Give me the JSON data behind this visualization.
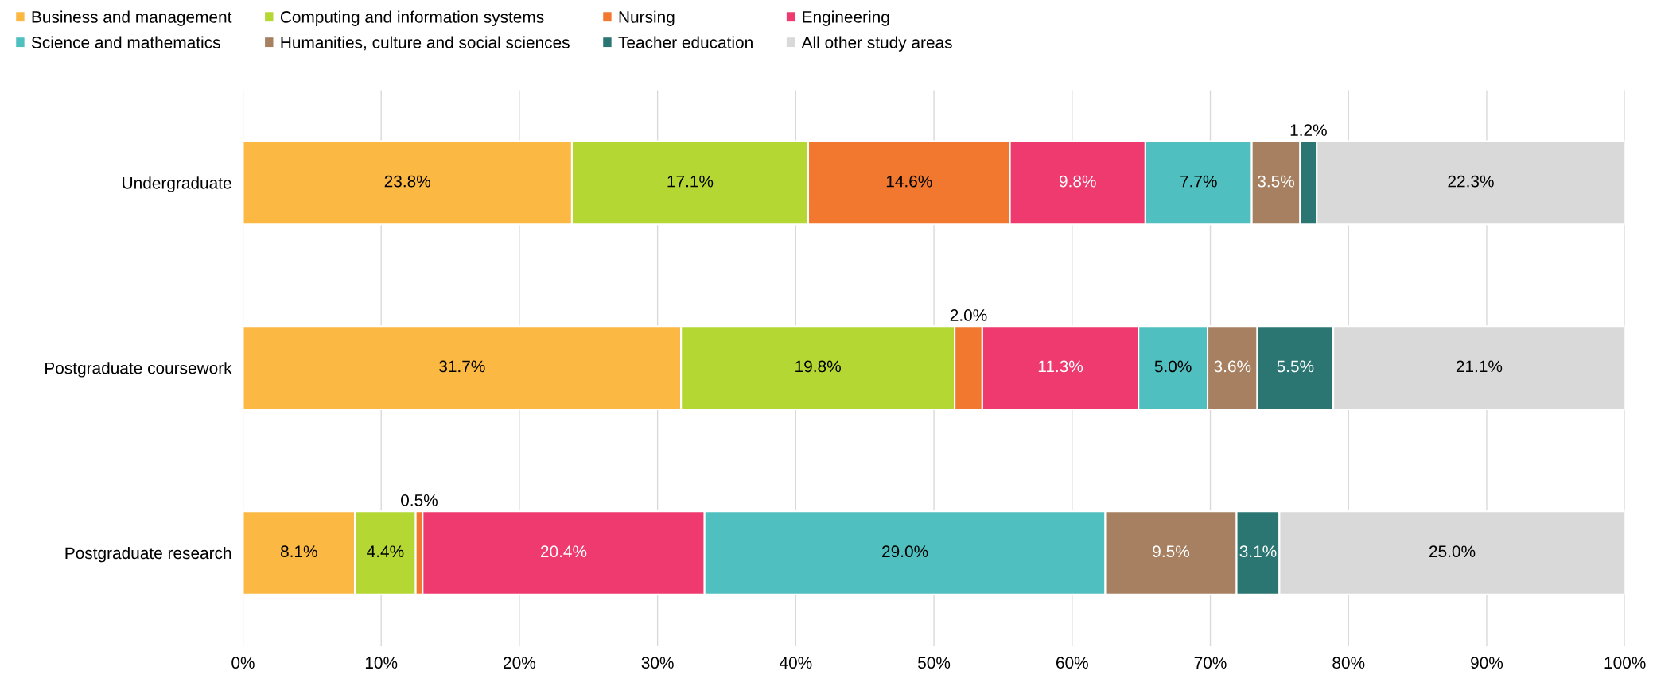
{
  "chart_data": {
    "type": "bar",
    "orientation": "horizontal",
    "stacked": true,
    "categories": [
      "Undergraduate",
      "Postgraduate coursework",
      "Postgraduate research"
    ],
    "series": [
      {
        "name": "Business and management",
        "color": "#fbb843",
        "values": [
          23.8,
          31.7,
          8.1
        ],
        "value_labels": [
          "23.8%",
          "31.7%",
          "8.1%"
        ]
      },
      {
        "name": "Computing and information systems",
        "color": "#b5d733",
        "values": [
          17.1,
          19.8,
          4.4
        ],
        "value_labels": [
          "17.1%",
          "19.8%",
          "4.4%"
        ]
      },
      {
        "name": "Nursing",
        "color": "#f2782f",
        "values": [
          14.6,
          2.0,
          0.5
        ],
        "value_labels": [
          "14.6%",
          "2.0%",
          "0.5%"
        ]
      },
      {
        "name": "Engineering",
        "color": "#ef3a6f",
        "values": [
          9.8,
          11.3,
          20.4
        ],
        "value_labels": [
          "9.8%",
          "11.3%",
          "20.4%"
        ]
      },
      {
        "name": "Science and mathematics",
        "color": "#50bfbf",
        "values": [
          7.7,
          5.0,
          29.0
        ],
        "value_labels": [
          "7.7%",
          "5.0%",
          "29.0%"
        ]
      },
      {
        "name": "Humanities, culture and social sciences",
        "color": "#a68060",
        "values": [
          3.5,
          3.6,
          9.5
        ],
        "value_labels": [
          "3.5%",
          "3.6%",
          "9.5%"
        ]
      },
      {
        "name": "Teacher education",
        "color": "#2b7672",
        "values": [
          1.2,
          5.5,
          3.1
        ],
        "value_labels": [
          "1.2%",
          "5.5%",
          "3.1%"
        ]
      },
      {
        "name": "All other study areas",
        "color": "#d9d9d9",
        "values": [
          22.3,
          21.1,
          25.0
        ],
        "value_labels": [
          "22.3%",
          "21.1%",
          "25.0%"
        ]
      }
    ],
    "xlim": [
      0,
      100
    ],
    "xticks": [
      {
        "value": 0,
        "label": "0%"
      },
      {
        "value": 10,
        "label": "10%"
      },
      {
        "value": 20,
        "label": "20%"
      },
      {
        "value": 30,
        "label": "30%"
      },
      {
        "value": 40,
        "label": "40%"
      },
      {
        "value": 50,
        "label": "50%"
      },
      {
        "value": 60,
        "label": "60%"
      },
      {
        "value": 70,
        "label": "70%"
      },
      {
        "value": 80,
        "label": "80%"
      },
      {
        "value": 90,
        "label": "90%"
      },
      {
        "value": 100,
        "label": "100%"
      }
    ],
    "grid": "x",
    "legend": "top"
  }
}
